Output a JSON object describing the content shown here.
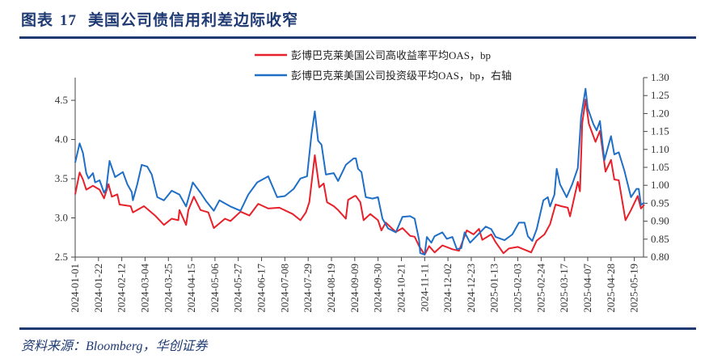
{
  "header": {
    "figure_label": "图表",
    "figure_number": "17",
    "title": "美国公司债信用利差边际收窄"
  },
  "footer": {
    "source": "资料来源：Bloomberg，华创证券"
  },
  "chart_data": {
    "type": "line",
    "title": "",
    "legend_placement": "top",
    "grid": false,
    "x_axis": {
      "type": "date",
      "tick_labels": [
        "2024-01-01",
        "2024-01-22",
        "2024-02-12",
        "2024-03-04",
        "2024-03-25",
        "2024-04-15",
        "2024-05-06",
        "2024-05-27",
        "2024-06-17",
        "2024-07-08",
        "2024-07-29",
        "2024-08-19",
        "2024-09-09",
        "2024-09-30",
        "2024-10-21",
        "2024-11-11",
        "2024-12-02",
        "2024-12-23",
        "2025-01-13",
        "2025-02-03",
        "2025-02-24",
        "2025-03-17",
        "2025-04-07",
        "2025-04-28",
        "2025-05-19"
      ],
      "range": [
        "2024-01-01",
        "2025-05-28"
      ]
    },
    "y_left": {
      "ticks": [
        "2.5",
        "3.0",
        "3.5",
        "4.0",
        "4.5"
      ],
      "range": [
        2.5,
        4.8
      ]
    },
    "y_right": {
      "ticks": [
        "0.80",
        "0.85",
        "0.90",
        "0.95",
        "1.00",
        "1.05",
        "1.10",
        "1.15",
        "1.20",
        "1.25",
        "1.30"
      ],
      "range": [
        0.8,
        1.3
      ]
    },
    "series": [
      {
        "name": "彭博巴克莱美国公司高收益率平均OAS，bp",
        "axis": "left",
        "color": "#e8202a",
        "points": [
          [
            "2024-01-01",
            3.3
          ],
          [
            "2024-01-05",
            3.58
          ],
          [
            "2024-01-08",
            3.49
          ],
          [
            "2024-01-11",
            3.36
          ],
          [
            "2024-01-17",
            3.41
          ],
          [
            "2024-01-23",
            3.36
          ],
          [
            "2024-01-27",
            3.25
          ],
          [
            "2024-01-31",
            3.43
          ],
          [
            "2024-02-03",
            3.27
          ],
          [
            "2024-02-08",
            3.3
          ],
          [
            "2024-02-10",
            3.17
          ],
          [
            "2024-02-20",
            3.15
          ],
          [
            "2024-02-22",
            3.07
          ],
          [
            "2024-03-03",
            3.15
          ],
          [
            "2024-03-13",
            3.03
          ],
          [
            "2024-03-21",
            2.91
          ],
          [
            "2024-03-28",
            2.99
          ],
          [
            "2024-04-03",
            2.97
          ],
          [
            "2024-04-04",
            3.1
          ],
          [
            "2024-04-10",
            2.91
          ],
          [
            "2024-04-12",
            3.1
          ],
          [
            "2024-04-17",
            3.27
          ],
          [
            "2024-04-23",
            3.1
          ],
          [
            "2024-04-30",
            3.07
          ],
          [
            "2024-05-05",
            2.87
          ],
          [
            "2024-05-15",
            2.99
          ],
          [
            "2024-05-20",
            2.96
          ],
          [
            "2024-05-29",
            3.08
          ],
          [
            "2024-06-06",
            3.03
          ],
          [
            "2024-06-14",
            3.18
          ],
          [
            "2024-06-23",
            3.12
          ],
          [
            "2024-07-03",
            3.13
          ],
          [
            "2024-07-15",
            3.05
          ],
          [
            "2024-07-22",
            2.97
          ],
          [
            "2024-07-27",
            3.07
          ],
          [
            "2024-07-30",
            3.2
          ],
          [
            "2024-08-04",
            3.8
          ],
          [
            "2024-08-08",
            3.39
          ],
          [
            "2024-08-12",
            3.44
          ],
          [
            "2024-08-15",
            3.2
          ],
          [
            "2024-08-21",
            3.15
          ],
          [
            "2024-08-25",
            3.1
          ],
          [
            "2024-09-01",
            2.99
          ],
          [
            "2024-09-03",
            3.23
          ],
          [
            "2024-09-09",
            3.28
          ],
          [
            "2024-09-14",
            3.2
          ],
          [
            "2024-09-10",
            3.28
          ],
          [
            "2024-09-17",
            2.97
          ],
          [
            "2024-09-23",
            3.05
          ],
          [
            "2024-09-30",
            2.97
          ],
          [
            "2024-10-03",
            2.84
          ],
          [
            "2024-10-07",
            2.94
          ],
          [
            "2024-10-16",
            2.82
          ],
          [
            "2024-10-22",
            2.87
          ],
          [
            "2024-10-29",
            2.77
          ],
          [
            "2024-11-02",
            2.76
          ],
          [
            "2024-11-06",
            2.64
          ],
          [
            "2024-11-11",
            2.53
          ],
          [
            "2024-11-15",
            2.64
          ],
          [
            "2024-11-20",
            2.56
          ],
          [
            "2024-11-27",
            2.65
          ],
          [
            "2024-12-06",
            2.6
          ],
          [
            "2024-12-12",
            2.58
          ],
          [
            "2024-12-19",
            2.84
          ],
          [
            "2024-12-25",
            2.79
          ],
          [
            "2024-12-30",
            2.86
          ],
          [
            "2025-01-02",
            2.72
          ],
          [
            "2025-01-10",
            2.79
          ],
          [
            "2025-01-14",
            2.69
          ],
          [
            "2025-01-21",
            2.55
          ],
          [
            "2025-01-26",
            2.61
          ],
          [
            "2025-02-03",
            2.63
          ],
          [
            "2025-02-15",
            2.56
          ],
          [
            "2025-02-20",
            2.71
          ],
          [
            "2025-02-27",
            2.79
          ],
          [
            "2025-03-04",
            2.92
          ],
          [
            "2025-03-09",
            3.17
          ],
          [
            "2025-03-14",
            3.15
          ],
          [
            "2025-03-20",
            3.13
          ],
          [
            "2025-03-22",
            3.02
          ],
          [
            "2025-03-29",
            3.46
          ],
          [
            "2025-03-31",
            3.34
          ],
          [
            "2025-04-02",
            4.21
          ],
          [
            "2025-04-05",
            4.51
          ],
          [
            "2025-04-08",
            4.2
          ],
          [
            "2025-04-14",
            3.97
          ],
          [
            "2025-04-18",
            4.11
          ],
          [
            "2025-04-23",
            3.59
          ],
          [
            "2025-04-28",
            3.74
          ],
          [
            "2025-05-01",
            3.49
          ],
          [
            "2025-05-05",
            3.48
          ],
          [
            "2025-05-11",
            2.97
          ],
          [
            "2025-05-16",
            3.1
          ],
          [
            "2025-05-22",
            3.28
          ],
          [
            "2025-05-25",
            3.12
          ],
          [
            "2025-05-28",
            3.17
          ]
        ]
      },
      {
        "name": "彭博巴克莱美国公司投资级平均OAS，bp，右轴",
        "axis": "right",
        "color": "#1f6fc6",
        "points": [
          [
            "2024-01-01",
            1.063
          ],
          [
            "2024-01-05",
            1.117
          ],
          [
            "2024-01-08",
            1.09
          ],
          [
            "2024-01-11",
            1.034
          ],
          [
            "2024-01-13",
            1.019
          ],
          [
            "2024-01-17",
            1.034
          ],
          [
            "2024-01-19",
            1.008
          ],
          [
            "2024-01-23",
            1.014
          ],
          [
            "2024-01-27",
            0.979
          ],
          [
            "2024-01-29",
            0.99
          ],
          [
            "2024-02-01",
            1.068
          ],
          [
            "2024-02-06",
            1.023
          ],
          [
            "2024-02-13",
            1.037
          ],
          [
            "2024-02-17",
            1.003
          ],
          [
            "2024-02-21",
            0.981
          ],
          [
            "2024-02-22",
            0.958
          ],
          [
            "2024-02-26",
            1.003
          ],
          [
            "2024-03-01",
            1.057
          ],
          [
            "2024-03-06",
            1.052
          ],
          [
            "2024-03-10",
            1.03
          ],
          [
            "2024-03-15",
            0.967
          ],
          [
            "2024-03-21",
            0.958
          ],
          [
            "2024-03-28",
            0.985
          ],
          [
            "2024-04-04",
            0.974
          ],
          [
            "2024-04-10",
            0.941
          ],
          [
            "2024-04-16",
            1.008
          ],
          [
            "2024-04-23",
            0.979
          ],
          [
            "2024-04-28",
            0.956
          ],
          [
            "2024-05-05",
            0.929
          ],
          [
            "2024-05-10",
            0.958
          ],
          [
            "2024-05-20",
            0.941
          ],
          [
            "2024-05-29",
            0.929
          ],
          [
            "2024-06-05",
            0.974
          ],
          [
            "2024-06-13",
            1.008
          ],
          [
            "2024-06-23",
            1.025
          ],
          [
            "2024-07-01",
            0.967
          ],
          [
            "2024-07-08",
            0.97
          ],
          [
            "2024-07-16",
            0.99
          ],
          [
            "2024-07-22",
            1.019
          ],
          [
            "2024-07-28",
            1.025
          ],
          [
            "2024-08-01",
            1.142
          ],
          [
            "2024-08-04",
            1.206
          ],
          [
            "2024-08-07",
            1.124
          ],
          [
            "2024-08-10",
            1.113
          ],
          [
            "2024-08-14",
            1.03
          ],
          [
            "2024-08-21",
            1.034
          ],
          [
            "2024-08-25",
            1.012
          ],
          [
            "2024-09-01",
            1.057
          ],
          [
            "2024-09-08",
            1.075
          ],
          [
            "2024-09-12",
            1.046
          ],
          [
            "2024-09-10",
            1.075
          ],
          [
            "2024-09-15",
            1.037
          ],
          [
            "2024-09-19",
            0.967
          ],
          [
            "2024-09-25",
            0.963
          ],
          [
            "2024-09-30",
            0.967
          ],
          [
            "2024-10-02",
            0.936
          ],
          [
            "2024-10-04",
            0.907
          ],
          [
            "2024-10-09",
            0.88
          ],
          [
            "2024-10-16",
            0.869
          ],
          [
            "2024-10-22",
            0.912
          ],
          [
            "2024-10-29",
            0.914
          ],
          [
            "2024-11-02",
            0.907
          ],
          [
            "2024-11-06",
            0.847
          ],
          [
            "2024-11-07",
            0.811
          ],
          [
            "2024-11-11",
            0.807
          ],
          [
            "2024-11-13",
            0.856
          ],
          [
            "2024-11-17",
            0.84
          ],
          [
            "2024-11-20",
            0.858
          ],
          [
            "2024-11-27",
            0.869
          ],
          [
            "2024-12-01",
            0.851
          ],
          [
            "2024-12-06",
            0.856
          ],
          [
            "2024-12-10",
            0.822
          ],
          [
            "2024-12-14",
            0.825
          ],
          [
            "2024-12-17",
            0.869
          ],
          [
            "2024-12-22",
            0.84
          ],
          [
            "2024-12-31",
            0.869
          ],
          [
            "2025-01-05",
            0.885
          ],
          [
            "2025-01-10",
            0.878
          ],
          [
            "2025-01-14",
            0.856
          ],
          [
            "2025-01-22",
            0.847
          ],
          [
            "2025-01-29",
            0.863
          ],
          [
            "2025-02-04",
            0.896
          ],
          [
            "2025-02-09",
            0.896
          ],
          [
            "2025-02-12",
            0.858
          ],
          [
            "2025-02-16",
            0.845
          ],
          [
            "2025-02-20",
            0.878
          ],
          [
            "2025-02-26",
            0.958
          ],
          [
            "2025-03-02",
            0.967
          ],
          [
            "2025-03-04",
            0.941
          ],
          [
            "2025-03-08",
            0.974
          ],
          [
            "2025-03-10",
            1.046
          ],
          [
            "2025-03-13",
            1.003
          ],
          [
            "2025-03-19",
            0.967
          ],
          [
            "2025-03-24",
            1.003
          ],
          [
            "2025-03-29",
            1.048
          ],
          [
            "2025-04-01",
            1.191
          ],
          [
            "2025-04-05",
            1.269
          ],
          [
            "2025-04-07",
            1.215
          ],
          [
            "2025-04-12",
            1.171
          ],
          [
            "2025-04-15",
            1.153
          ],
          [
            "2025-04-18",
            1.179
          ],
          [
            "2025-04-22",
            1.07
          ],
          [
            "2025-04-28",
            1.137
          ],
          [
            "2025-05-01",
            1.086
          ],
          [
            "2025-05-05",
            1.092
          ],
          [
            "2025-05-10",
            1.041
          ],
          [
            "2025-05-16",
            0.967
          ],
          [
            "2025-05-21",
            0.99
          ],
          [
            "2025-05-23",
            0.99
          ],
          [
            "2025-05-25",
            0.945
          ],
          [
            "2025-05-28",
            0.952
          ]
        ]
      }
    ]
  }
}
